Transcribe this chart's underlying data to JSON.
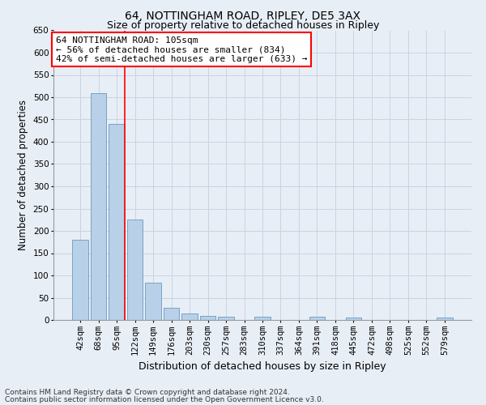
{
  "title": "64, NOTTINGHAM ROAD, RIPLEY, DE5 3AX",
  "subtitle": "Size of property relative to detached houses in Ripley",
  "xlabel": "Distribution of detached houses by size in Ripley",
  "ylabel": "Number of detached properties",
  "categories": [
    "42sqm",
    "68sqm",
    "95sqm",
    "122sqm",
    "149sqm",
    "176sqm",
    "203sqm",
    "230sqm",
    "257sqm",
    "283sqm",
    "310sqm",
    "337sqm",
    "364sqm",
    "391sqm",
    "418sqm",
    "445sqm",
    "472sqm",
    "498sqm",
    "525sqm",
    "552sqm",
    "579sqm"
  ],
  "values": [
    180,
    510,
    440,
    225,
    84,
    27,
    14,
    9,
    7,
    0,
    8,
    0,
    0,
    8,
    0,
    5,
    0,
    0,
    0,
    0,
    5
  ],
  "bar_color": "#b8d0e8",
  "bar_edge_color": "#6a9abf",
  "grid_color": "#c8d4e4",
  "background_color": "#e8eef6",
  "plot_bg_color": "#e8eef6",
  "ylim": [
    0,
    650
  ],
  "yticks": [
    0,
    50,
    100,
    150,
    200,
    250,
    300,
    350,
    400,
    450,
    500,
    550,
    600,
    650
  ],
  "vline_x_index": 2,
  "vline_color": "red",
  "annotation_text": "64 NOTTINGHAM ROAD: 105sqm\n← 56% of detached houses are smaller (834)\n42% of semi-detached houses are larger (633) →",
  "annotation_box_color": "white",
  "annotation_box_edge_color": "red",
  "footer_line1": "Contains HM Land Registry data © Crown copyright and database right 2024.",
  "footer_line2": "Contains public sector information licensed under the Open Government Licence v3.0.",
  "title_fontsize": 10,
  "subtitle_fontsize": 9,
  "xlabel_fontsize": 9,
  "ylabel_fontsize": 8.5,
  "tick_fontsize": 7.5,
  "annotation_fontsize": 8,
  "footer_fontsize": 6.5
}
